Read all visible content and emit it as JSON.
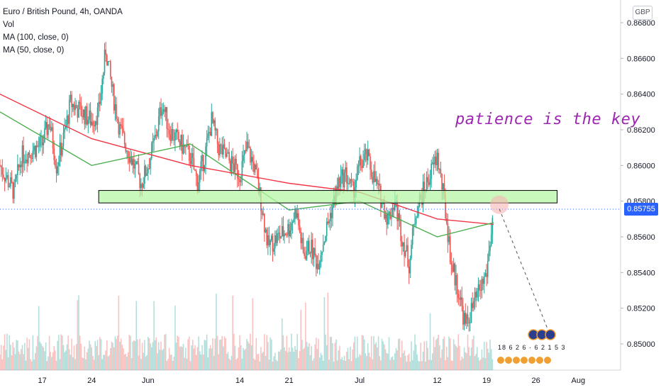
{
  "legend": {
    "title": "Euro / British Pound, 4h, OANDA",
    "vol": "Vol",
    "ma100": "MA (100, close, 0)",
    "ma50": "MA (50, close, 0)"
  },
  "currency_badge": "GBP",
  "annotation_text": "patience is the key",
  "current_price_label": "0.85755",
  "events_text": "18 6 2 6 · 6 2 1 5 3",
  "colors": {
    "up": "#26a69a",
    "down": "#ef5350",
    "ma100": "#f23645",
    "ma50": "#4caf50",
    "zone_fill": "#b7f5a6",
    "annotation": "#9c27b0",
    "price_tag": "#2962ff"
  },
  "chart_data": {
    "type": "candlestick",
    "title": "Euro / British Pound, 4h, OANDA",
    "ylim": [
      0.8485,
      0.869
    ],
    "y_ticks": [
      "0.86800",
      "0.86600",
      "0.86400",
      "0.86200",
      "0.86000",
      "0.85800",
      "0.85600",
      "0.85400",
      "0.85200",
      "0.85000"
    ],
    "y_tick_values": [
      0.868,
      0.866,
      0.864,
      0.862,
      0.86,
      0.858,
      0.856,
      0.854,
      0.852,
      0.85
    ],
    "x_ticks": [
      "17",
      "24",
      "Jun",
      "14",
      "21",
      "Jul",
      "12",
      "19",
      "26",
      "Aug"
    ],
    "x_tick_dates": [
      "2021-05-17",
      "2021-05-24",
      "2021-06-01",
      "2021-06-14",
      "2021-06-21",
      "2021-07-01",
      "2021-07-12",
      "2021-07-19",
      "2021-07-26",
      "2021-08-01"
    ],
    "resistance_zone": {
      "low": 0.8579,
      "high": 0.8586,
      "from": "2021-05-25",
      "to": "2021-07-29"
    },
    "current_price": 0.85755,
    "closes": [
      [
        "2021-05-11",
        0.86
      ],
      [
        "2021-05-13",
        0.8585
      ],
      [
        "2021-05-14",
        0.8605
      ],
      [
        "2021-05-17",
        0.8612
      ],
      [
        "2021-05-18",
        0.8625
      ],
      [
        "2021-05-19",
        0.86
      ],
      [
        "2021-05-20",
        0.8615
      ],
      [
        "2021-05-21",
        0.8635
      ],
      [
        "2021-05-24",
        0.8625
      ],
      [
        "2021-05-25",
        0.863
      ],
      [
        "2021-05-26",
        0.8665
      ],
      [
        "2021-05-27",
        0.864
      ],
      [
        "2021-05-28",
        0.862
      ],
      [
        "2021-05-31",
        0.859
      ],
      [
        "2021-06-01",
        0.86
      ],
      [
        "2021-06-02",
        0.8615
      ],
      [
        "2021-06-03",
        0.8635
      ],
      [
        "2021-06-04",
        0.862
      ],
      [
        "2021-06-07",
        0.8605
      ],
      [
        "2021-06-08",
        0.859
      ],
      [
        "2021-06-09",
        0.8605
      ],
      [
        "2021-06-10",
        0.8625
      ],
      [
        "2021-06-11",
        0.861
      ],
      [
        "2021-06-14",
        0.8595
      ],
      [
        "2021-06-15",
        0.861
      ],
      [
        "2021-06-16",
        0.86
      ],
      [
        "2021-06-17",
        0.858
      ],
      [
        "2021-06-18",
        0.8555
      ],
      [
        "2021-06-21",
        0.8565
      ],
      [
        "2021-06-22",
        0.8575
      ],
      [
        "2021-06-23",
        0.855
      ],
      [
        "2021-06-24",
        0.8555
      ],
      [
        "2021-06-25",
        0.8545
      ],
      [
        "2021-06-28",
        0.859
      ],
      [
        "2021-06-29",
        0.8595
      ],
      [
        "2021-06-30",
        0.8585
      ],
      [
        "2021-07-01",
        0.86
      ],
      [
        "2021-07-02",
        0.8605
      ],
      [
        "2021-07-05",
        0.857
      ],
      [
        "2021-07-06",
        0.858
      ],
      [
        "2021-07-07",
        0.856
      ],
      [
        "2021-07-08",
        0.8545
      ],
      [
        "2021-07-09",
        0.8575
      ],
      [
        "2021-07-12",
        0.8605
      ],
      [
        "2021-07-13",
        0.858
      ],
      [
        "2021-07-14",
        0.8545
      ],
      [
        "2021-07-15",
        0.853
      ],
      [
        "2021-07-16",
        0.851
      ],
      [
        "2021-07-19",
        0.854
      ],
      [
        "2021-07-20",
        0.8575
      ]
    ],
    "ma100": [
      [
        0.864,
        "2021-05-11"
      ],
      [
        0.8615,
        "2021-05-24"
      ],
      [
        0.86,
        "2021-06-07"
      ],
      [
        0.859,
        "2021-06-21"
      ],
      [
        0.8585,
        "2021-07-01"
      ],
      [
        0.857,
        "2021-07-12"
      ],
      [
        0.8567,
        "2021-07-20"
      ]
    ],
    "ma50": [
      [
        0.863,
        "2021-05-11"
      ],
      [
        0.86,
        "2021-05-24"
      ],
      [
        0.8612,
        "2021-06-07"
      ],
      [
        0.8575,
        "2021-06-21"
      ],
      [
        0.858,
        "2021-07-01"
      ],
      [
        0.856,
        "2021-07-12"
      ],
      [
        0.8568,
        "2021-07-20"
      ]
    ]
  }
}
